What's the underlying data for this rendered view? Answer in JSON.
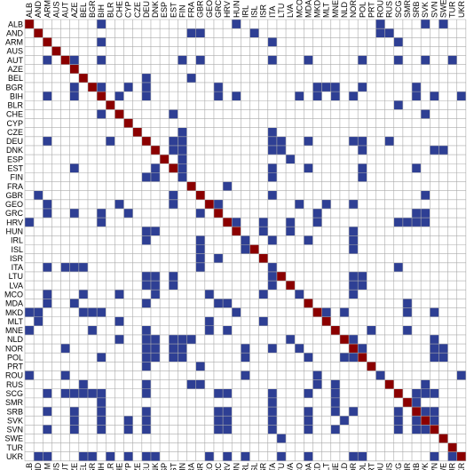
{
  "chart_data": {
    "type": "heatmap",
    "title": "",
    "labels": [
      "ALB",
      "AND",
      "ARM",
      "AUS",
      "AUT",
      "AZE",
      "BEL",
      "BGR",
      "BIH",
      "BLR",
      "CHE",
      "CYP",
      "CZE",
      "DEU",
      "DNK",
      "ESP",
      "EST",
      "FIN",
      "FRA",
      "GBR",
      "GEO",
      "GRC",
      "HRV",
      "HUN",
      "IRL",
      "ISL",
      "ISR",
      "ITA",
      "LTU",
      "LVA",
      "MCO",
      "MDA",
      "MKD",
      "MLT",
      "MNE",
      "NLD",
      "NOR",
      "POL",
      "PRT",
      "ROU",
      "RUS",
      "SCG",
      "SMR",
      "SRB",
      "SVK",
      "SVN",
      "SWE",
      "TUR",
      "UKR"
    ],
    "bottom_labels": [
      "ALB",
      "AND",
      "ARM",
      "AUS",
      "AUT",
      "AZE",
      "BEL",
      "BGR",
      "BIH",
      "BLR",
      "CHE",
      "CYP",
      "CZE",
      "DEU",
      "DNK",
      "ESP",
      "EST",
      "FIN",
      "FRA",
      "GBR",
      "GEO",
      "GRC",
      "HRV",
      "HUN",
      "IRL",
      "ISL",
      "ISR",
      "ITA",
      "LTU",
      "LVA",
      "MCO",
      "MDA",
      "MKD",
      "MLT",
      "MNE",
      "NLD",
      "NOR",
      "POL",
      "PRT",
      "ROU",
      "RUS",
      "SCG",
      "SMR",
      "SRB",
      "SVK",
      "SVN",
      "SWE",
      "TUR",
      "UKR"
    ],
    "diagonal_color": "#8b0000",
    "cell_color": "#2e3f94",
    "empty_color": "#ffffff",
    "grid_color": "#aaaaaa",
    "cells": [
      [
        0,
        8
      ],
      [
        0,
        23
      ],
      [
        0,
        39
      ],
      [
        0,
        44
      ],
      [
        0,
        46
      ],
      [
        1,
        18
      ],
      [
        1,
        19
      ],
      [
        1,
        25
      ],
      [
        1,
        39
      ],
      [
        1,
        40
      ],
      [
        2,
        8
      ],
      [
        2,
        27
      ],
      [
        2,
        41
      ],
      [
        4,
        2
      ],
      [
        4,
        5
      ],
      [
        4,
        8
      ],
      [
        4,
        17
      ],
      [
        4,
        19
      ],
      [
        4,
        27
      ],
      [
        4,
        31
      ],
      [
        4,
        37
      ],
      [
        4,
        41
      ],
      [
        4,
        44
      ],
      [
        4,
        47
      ],
      [
        6,
        13
      ],
      [
        6,
        18
      ],
      [
        7,
        5
      ],
      [
        7,
        8
      ],
      [
        7,
        11
      ],
      [
        7,
        13
      ],
      [
        7,
        21
      ],
      [
        7,
        32
      ],
      [
        7,
        33
      ],
      [
        7,
        34
      ],
      [
        7,
        37
      ],
      [
        7,
        43
      ],
      [
        8,
        2
      ],
      [
        8,
        5
      ],
      [
        8,
        10
      ],
      [
        8,
        13
      ],
      [
        8,
        21
      ],
      [
        8,
        23
      ],
      [
        8,
        30
      ],
      [
        8,
        32
      ],
      [
        8,
        34
      ],
      [
        8,
        36
      ],
      [
        8,
        43
      ],
      [
        8,
        45
      ],
      [
        8,
        48
      ],
      [
        9,
        41
      ],
      [
        10,
        8
      ],
      [
        10,
        16
      ],
      [
        10,
        44
      ],
      [
        12,
        17
      ],
      [
        12,
        27
      ],
      [
        13,
        2
      ],
      [
        13,
        9
      ],
      [
        13,
        16
      ],
      [
        13,
        17
      ],
      [
        13,
        27
      ],
      [
        13,
        28
      ],
      [
        13,
        31
      ],
      [
        13,
        36
      ],
      [
        13,
        37
      ],
      [
        13,
        40
      ],
      [
        14,
        16
      ],
      [
        14,
        17
      ],
      [
        14,
        27
      ],
      [
        14,
        28
      ],
      [
        14,
        37
      ],
      [
        14,
        45
      ],
      [
        14,
        46
      ],
      [
        15,
        17
      ],
      [
        15,
        29
      ],
      [
        16,
        5
      ],
      [
        16,
        14
      ],
      [
        16,
        17
      ],
      [
        16,
        27
      ],
      [
        16,
        31
      ],
      [
        16,
        37
      ],
      [
        16,
        43
      ],
      [
        17,
        13
      ],
      [
        17,
        14
      ],
      [
        17,
        17
      ],
      [
        17,
        27
      ],
      [
        17,
        37
      ],
      [
        18,
        22
      ],
      [
        19,
        1
      ],
      [
        19,
        16
      ],
      [
        19,
        27
      ],
      [
        19,
        44
      ],
      [
        20,
        2
      ],
      [
        20,
        10
      ],
      [
        20,
        16
      ],
      [
        20,
        21
      ],
      [
        20,
        30
      ],
      [
        20,
        33
      ],
      [
        20,
        36
      ],
      [
        21,
        2
      ],
      [
        21,
        5
      ],
      [
        21,
        8
      ],
      [
        21,
        11
      ],
      [
        21,
        19
      ],
      [
        21,
        32
      ],
      [
        21,
        43
      ],
      [
        21,
        44
      ],
      [
        22,
        0
      ],
      [
        22,
        8
      ],
      [
        22,
        23
      ],
      [
        22,
        26
      ],
      [
        22,
        29
      ],
      [
        22,
        32
      ],
      [
        22,
        41
      ],
      [
        22,
        42
      ],
      [
        22,
        43
      ],
      [
        22,
        44
      ],
      [
        23,
        13
      ],
      [
        23,
        14
      ],
      [
        23,
        26
      ],
      [
        23,
        29
      ],
      [
        23,
        36
      ],
      [
        24,
        13
      ],
      [
        24,
        19
      ],
      [
        24,
        24
      ],
      [
        24,
        27
      ],
      [
        24,
        31
      ],
      [
        24,
        36
      ],
      [
        25,
        19
      ],
      [
        25,
        24
      ],
      [
        25,
        36
      ],
      [
        26,
        19
      ],
      [
        26,
        21
      ],
      [
        27,
        2
      ],
      [
        27,
        4
      ],
      [
        27,
        5
      ],
      [
        27,
        6
      ],
      [
        27,
        19
      ],
      [
        27,
        27
      ],
      [
        27,
        41
      ],
      [
        28,
        13
      ],
      [
        28,
        14
      ],
      [
        28,
        16
      ],
      [
        28,
        27
      ],
      [
        28,
        36
      ],
      [
        28,
        37
      ],
      [
        29,
        13
      ],
      [
        29,
        14
      ],
      [
        29,
        16
      ],
      [
        29,
        27
      ],
      [
        29,
        36
      ],
      [
        29,
        37
      ],
      [
        30,
        2
      ],
      [
        30,
        6
      ],
      [
        30,
        10
      ],
      [
        30,
        14
      ],
      [
        30,
        20
      ],
      [
        30,
        26
      ],
      [
        30,
        30
      ],
      [
        30,
        36
      ],
      [
        31,
        2
      ],
      [
        31,
        5
      ],
      [
        31,
        13
      ],
      [
        31,
        21
      ],
      [
        31,
        22
      ],
      [
        31,
        42
      ],
      [
        32,
        0
      ],
      [
        32,
        1
      ],
      [
        32,
        6
      ],
      [
        32,
        7
      ],
      [
        32,
        8
      ],
      [
        32,
        23
      ],
      [
        32,
        33
      ],
      [
        32,
        35
      ],
      [
        32,
        42
      ],
      [
        32,
        45
      ],
      [
        33,
        1
      ],
      [
        33,
        10
      ],
      [
        33,
        20
      ],
      [
        33,
        26
      ],
      [
        34,
        0
      ],
      [
        34,
        7
      ],
      [
        34,
        13
      ],
      [
        34,
        20
      ],
      [
        34,
        22
      ],
      [
        34,
        38
      ],
      [
        34,
        42
      ],
      [
        35,
        10
      ],
      [
        35,
        13
      ],
      [
        35,
        14
      ],
      [
        35,
        16
      ],
      [
        35,
        17
      ],
      [
        35,
        18
      ],
      [
        35,
        29
      ],
      [
        35,
        36
      ],
      [
        35,
        45
      ],
      [
        36,
        4
      ],
      [
        36,
        13
      ],
      [
        36,
        14
      ],
      [
        36,
        16
      ],
      [
        36,
        17
      ],
      [
        36,
        24
      ],
      [
        36,
        27
      ],
      [
        36,
        30
      ],
      [
        36,
        37
      ],
      [
        36,
        45
      ],
      [
        36,
        46
      ],
      [
        37,
        8
      ],
      [
        37,
        13
      ],
      [
        37,
        14
      ],
      [
        37,
        16
      ],
      [
        37,
        17
      ],
      [
        37,
        24
      ],
      [
        37,
        31
      ],
      [
        37,
        35
      ],
      [
        37,
        36
      ],
      [
        37,
        45
      ],
      [
        37,
        46
      ],
      [
        38,
        13
      ],
      [
        38,
        19
      ],
      [
        39,
        0
      ],
      [
        39,
        4
      ],
      [
        39,
        24
      ],
      [
        39,
        32
      ],
      [
        39,
        39
      ],
      [
        39,
        48
      ],
      [
        40,
        6
      ],
      [
        40,
        13
      ],
      [
        40,
        18
      ],
      [
        40,
        19
      ],
      [
        40,
        32
      ],
      [
        40,
        34
      ],
      [
        40,
        44
      ],
      [
        41,
        2
      ],
      [
        41,
        4
      ],
      [
        41,
        5
      ],
      [
        41,
        6
      ],
      [
        41,
        7
      ],
      [
        41,
        8
      ],
      [
        41,
        13
      ],
      [
        41,
        21
      ],
      [
        41,
        22
      ],
      [
        41,
        27
      ],
      [
        41,
        31
      ],
      [
        41,
        34
      ],
      [
        41,
        43
      ],
      [
        41,
        44
      ],
      [
        41,
        45
      ],
      [
        42,
        8
      ],
      [
        42,
        27
      ],
      [
        42,
        34
      ],
      [
        42,
        43
      ],
      [
        43,
        2
      ],
      [
        43,
        5
      ],
      [
        43,
        8
      ],
      [
        43,
        13
      ],
      [
        43,
        21
      ],
      [
        43,
        22
      ],
      [
        43,
        27
      ],
      [
        43,
        31
      ],
      [
        43,
        34
      ],
      [
        43,
        36
      ],
      [
        43,
        41
      ],
      [
        43,
        44
      ],
      [
        43,
        45
      ],
      [
        44,
        5
      ],
      [
        44,
        8
      ],
      [
        44,
        11
      ],
      [
        44,
        13
      ],
      [
        44,
        21
      ],
      [
        44,
        22
      ],
      [
        44,
        27
      ],
      [
        44,
        31
      ],
      [
        44,
        35
      ],
      [
        44,
        41
      ],
      [
        44,
        43
      ],
      [
        44,
        45
      ],
      [
        45,
        2
      ],
      [
        45,
        5
      ],
      [
        45,
        8
      ],
      [
        45,
        11
      ],
      [
        45,
        13
      ],
      [
        45,
        21
      ],
      [
        45,
        22
      ],
      [
        45,
        27
      ],
      [
        45,
        31
      ],
      [
        45,
        34
      ],
      [
        45,
        41
      ],
      [
        45,
        43
      ],
      [
        45,
        44
      ],
      [
        46,
        28
      ],
      [
        48,
        1
      ],
      [
        48,
        2
      ],
      [
        48,
        6
      ],
      [
        48,
        7
      ],
      [
        48,
        9
      ],
      [
        48,
        11
      ],
      [
        48,
        13
      ],
      [
        48,
        14
      ],
      [
        48,
        20
      ],
      [
        48,
        22
      ],
      [
        48,
        24
      ],
      [
        48,
        28
      ],
      [
        48,
        31
      ],
      [
        48,
        36
      ],
      [
        48,
        37
      ],
      [
        48,
        45
      ],
      [
        48,
        47
      ]
    ]
  }
}
